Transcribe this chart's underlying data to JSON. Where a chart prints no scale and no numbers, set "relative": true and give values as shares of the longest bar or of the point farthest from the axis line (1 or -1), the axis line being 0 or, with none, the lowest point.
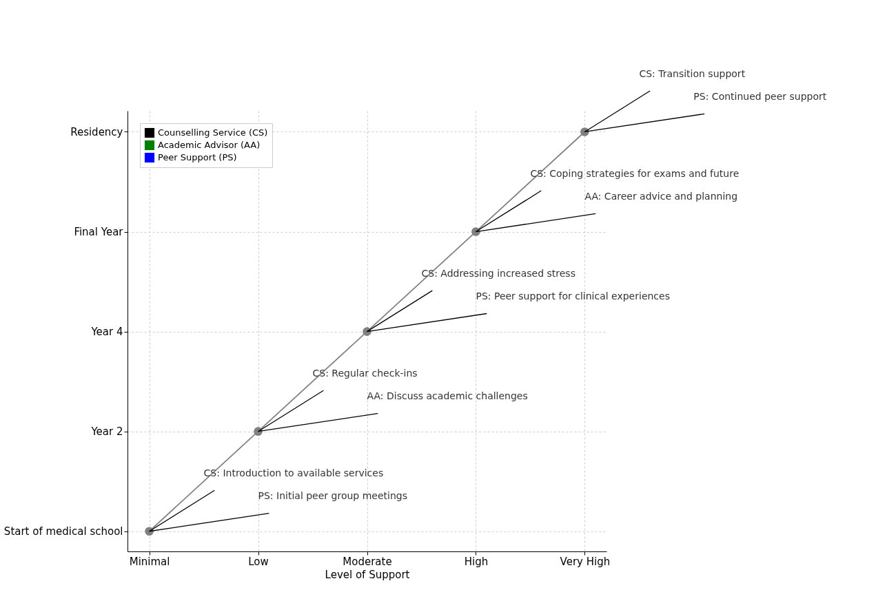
{
  "chart_data": {
    "type": "line",
    "xlabel": "Level of Support",
    "categories": [
      "Minimal",
      "Low",
      "Moderate",
      "High",
      "Very High"
    ],
    "y_categories": [
      "Residency",
      "Final Year",
      "Year 4",
      "Year 2",
      "Start of medical school"
    ],
    "series": [
      {
        "color": "#808080",
        "values": [
          0.048,
          0.286,
          0.524,
          0.762,
          1
        ]
      },
      {
        "name": "Counselling Service (CS)",
        "color": "#000000",
        "values": [
          null,
          null,
          null,
          null,
          null
        ]
      },
      {
        "name": "Academic Advisor (AA)",
        "color": "#008000",
        "values": [
          null,
          null,
          null,
          null,
          null
        ]
      },
      {
        "name": "Peer Support (PS)",
        "color": "#0000ff",
        "values": [
          null,
          null,
          null,
          null,
          null
        ]
      }
    ],
    "annotations": [
      "CS: Introduction to available services",
      "PS: Initial peer group meetings",
      "CS: Regular check-ins",
      "AA: Discuss academic challenges",
      "CS: Addressing increased stress",
      "PS: Peer support for clinical experiences",
      "CS: Coping strategies for exams and future",
      "AA: Career advice and planning",
      "CS: Transition support",
      "PS: Continued peer support"
    ],
    "relative": true,
    "grid": true,
    "legend": "top left",
    "marker": "circle",
    "line_style": "solid"
  }
}
